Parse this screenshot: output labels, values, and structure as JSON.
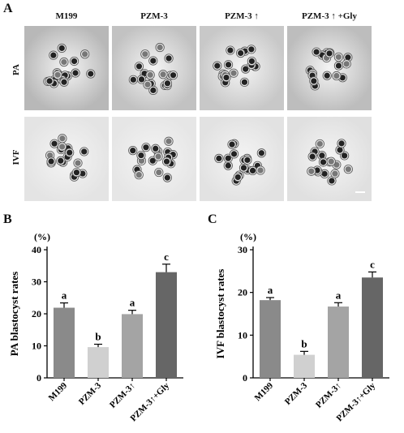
{
  "panel_a": {
    "label": "A",
    "column_headers": [
      "M199",
      "PZM-3",
      "PZM-3 ↑",
      "PZM-3 ↑ +Gly"
    ],
    "row_headers": [
      "PA",
      "IVF"
    ]
  },
  "colors": {
    "bar_fills": [
      "#8a8a8a",
      "#d0d0d0",
      "#a4a4a4",
      "#666666"
    ],
    "micro_bg_top": [
      "#b8b8b8",
      "#c2c2c2",
      "#c8c8c8",
      "#bdbdbd"
    ],
    "micro_bg_bottom": [
      "#e4e4e4",
      "#e6e6e6",
      "#e2e2e2",
      "#e0e0e0"
    ]
  },
  "chart_data": [
    {
      "panel": "B",
      "type": "bar",
      "unit_label": "(%)",
      "ylabel": "PA blastocyst rates",
      "categories": [
        "M199",
        "PZM-3",
        "PZM-3↑",
        "PZM-3↑+Gly"
      ],
      "values": [
        21.9,
        9.6,
        19.9,
        33.0
      ],
      "errors": [
        1.5,
        0.9,
        1.2,
        2.5
      ],
      "significance": [
        "a",
        "b",
        "a",
        "c"
      ],
      "ylim": [
        0,
        40
      ],
      "yticks": [
        "0",
        "10",
        "20",
        "30",
        "40"
      ],
      "tick_values": [
        0,
        10,
        20,
        30,
        40
      ],
      "grid": false
    },
    {
      "panel": "C",
      "type": "bar",
      "unit_label": "(%)",
      "ylabel": "IVF blastocyst rates",
      "categories": [
        "M199",
        "PZM-3",
        "PZM-3↑",
        "PZM-3↑+Gly"
      ],
      "values": [
        18.2,
        5.4,
        16.7,
        23.5
      ],
      "errors": [
        0.6,
        0.8,
        0.9,
        1.3
      ],
      "significance": [
        "a",
        "b",
        "a",
        "c"
      ],
      "ylim": [
        0,
        30
      ],
      "yticks": [
        "0",
        "10",
        "20",
        "30"
      ],
      "tick_values": [
        0,
        10,
        20,
        30
      ],
      "grid": false
    }
  ]
}
